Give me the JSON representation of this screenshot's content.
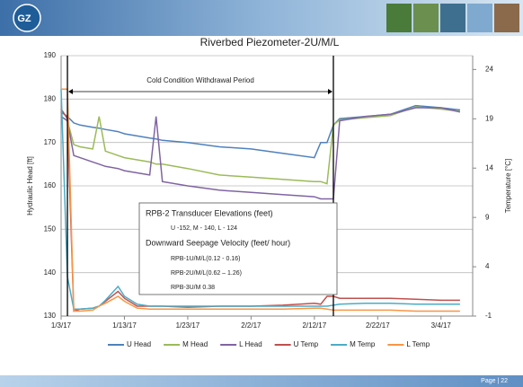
{
  "header": {
    "logo": "GZ"
  },
  "footer": {
    "page": "Page | 22"
  },
  "chart_data": {
    "type": "line",
    "title": "Riverbed Piezometer-2U/M/L",
    "y_label": "Hydraulic Head [ft]",
    "y2_label": "Temperature [°C]",
    "x": [
      "1/3/17",
      "1/4/17",
      "1/5/17",
      "1/6/17",
      "1/8/17",
      "1/9/17",
      "1/10/17",
      "1/12/17",
      "1/13/17",
      "1/15/17",
      "1/17/17",
      "1/18/17",
      "1/19/17",
      "1/23/17",
      "1/28/17",
      "2/2/17",
      "2/7/17",
      "2/12/17",
      "2/13/17",
      "2/14/17",
      "2/15/17",
      "2/16/17",
      "2/20/17",
      "2/24/17",
      "2/28/17",
      "3/4/17",
      "3/7/17"
    ],
    "xlim": [
      "1/3/17",
      "3/9/17"
    ],
    "xticks": [
      "1/3/17",
      "1/13/17",
      "1/23/17",
      "2/2/17",
      "2/12/17",
      "2/22/17",
      "3/4/17"
    ],
    "ylim": [
      130,
      190
    ],
    "yticks": [
      130,
      140,
      150,
      160,
      170,
      180,
      190
    ],
    "y2lim": [
      -1,
      25.4
    ],
    "y2ticks": [
      -1,
      4,
      9,
      14,
      19,
      24
    ],
    "grid": true,
    "series": [
      {
        "name": "U Head",
        "color": "#4f81bd",
        "values": [
          177,
          176,
          174.5,
          174,
          173.5,
          173.3,
          173,
          172.5,
          172,
          171.5,
          171,
          170.8,
          170.5,
          170,
          169,
          168.5,
          167.5,
          166.5,
          170,
          170,
          174,
          175.5,
          176,
          176.5,
          178.5,
          178,
          177.5
        ]
      },
      {
        "name": "M Head",
        "color": "#9bbb59",
        "values": [
          176,
          175,
          169.5,
          169,
          168.5,
          176,
          168,
          167,
          166.5,
          166,
          165.5,
          165,
          165,
          164,
          162.5,
          162,
          161.5,
          161,
          161,
          160.5,
          174,
          175.2,
          175.7,
          176.2,
          178.2,
          177.7,
          177.2
        ]
      },
      {
        "name": "L Head",
        "color": "#8064a2",
        "values": [
          176,
          175,
          167,
          166.5,
          165.5,
          165,
          164.5,
          164,
          163.5,
          163,
          162.5,
          176,
          161,
          160,
          159,
          158.5,
          158,
          157.5,
          157,
          157,
          157,
          175,
          176,
          176.5,
          178,
          178,
          177
        ]
      },
      {
        "name": "U Temp",
        "color": "#c0504d",
        "axis": "y2",
        "values": [
          20,
          19,
          -0.5,
          -0.3,
          -0.2,
          0,
          0.5,
          1.5,
          0.8,
          0,
          0,
          0,
          0,
          -0.1,
          0,
          0,
          0.1,
          0.3,
          0.2,
          1,
          1,
          0.8,
          0.8,
          0.8,
          0.7,
          0.6,
          0.6
        ]
      },
      {
        "name": "M Temp",
        "color": "#4bacc6",
        "axis": "y2",
        "values": [
          22,
          3,
          -0.3,
          -0.3,
          -0.2,
          0,
          0.6,
          2,
          1,
          0.2,
          0,
          0,
          0,
          0,
          0,
          0,
          0,
          0,
          0,
          0,
          0.1,
          0.2,
          0.3,
          0.3,
          0.2,
          0.2,
          0.2
        ]
      },
      {
        "name": "L Temp",
        "color": "#f79646",
        "axis": "y2",
        "values": [
          22,
          22,
          -0.5,
          -0.5,
          -0.4,
          0,
          0.3,
          1,
          0.5,
          -0.2,
          -0.3,
          -0.3,
          -0.3,
          -0.3,
          -0.3,
          -0.3,
          -0.3,
          -0.2,
          -0.2,
          -0.3,
          -0.4,
          -0.4,
          -0.4,
          -0.4,
          -0.5,
          -0.5,
          -0.5
        ]
      }
    ],
    "period": {
      "label": "Cold Condition Withdrawal Period",
      "start": "1/4/17",
      "end": "2/15/17"
    },
    "textbox": [
      "RPB-2 Transducer Elevations (feet)",
      "U -152, M - 140, L - 124",
      "Downward Seepage Velocity (feet/ hour)",
      "RPB-1U/M/L(0.12 - 0.16)",
      "RPB-2U/M/L(0.62 – 1.26)",
      "RPB-3U/M 0.38"
    ]
  }
}
